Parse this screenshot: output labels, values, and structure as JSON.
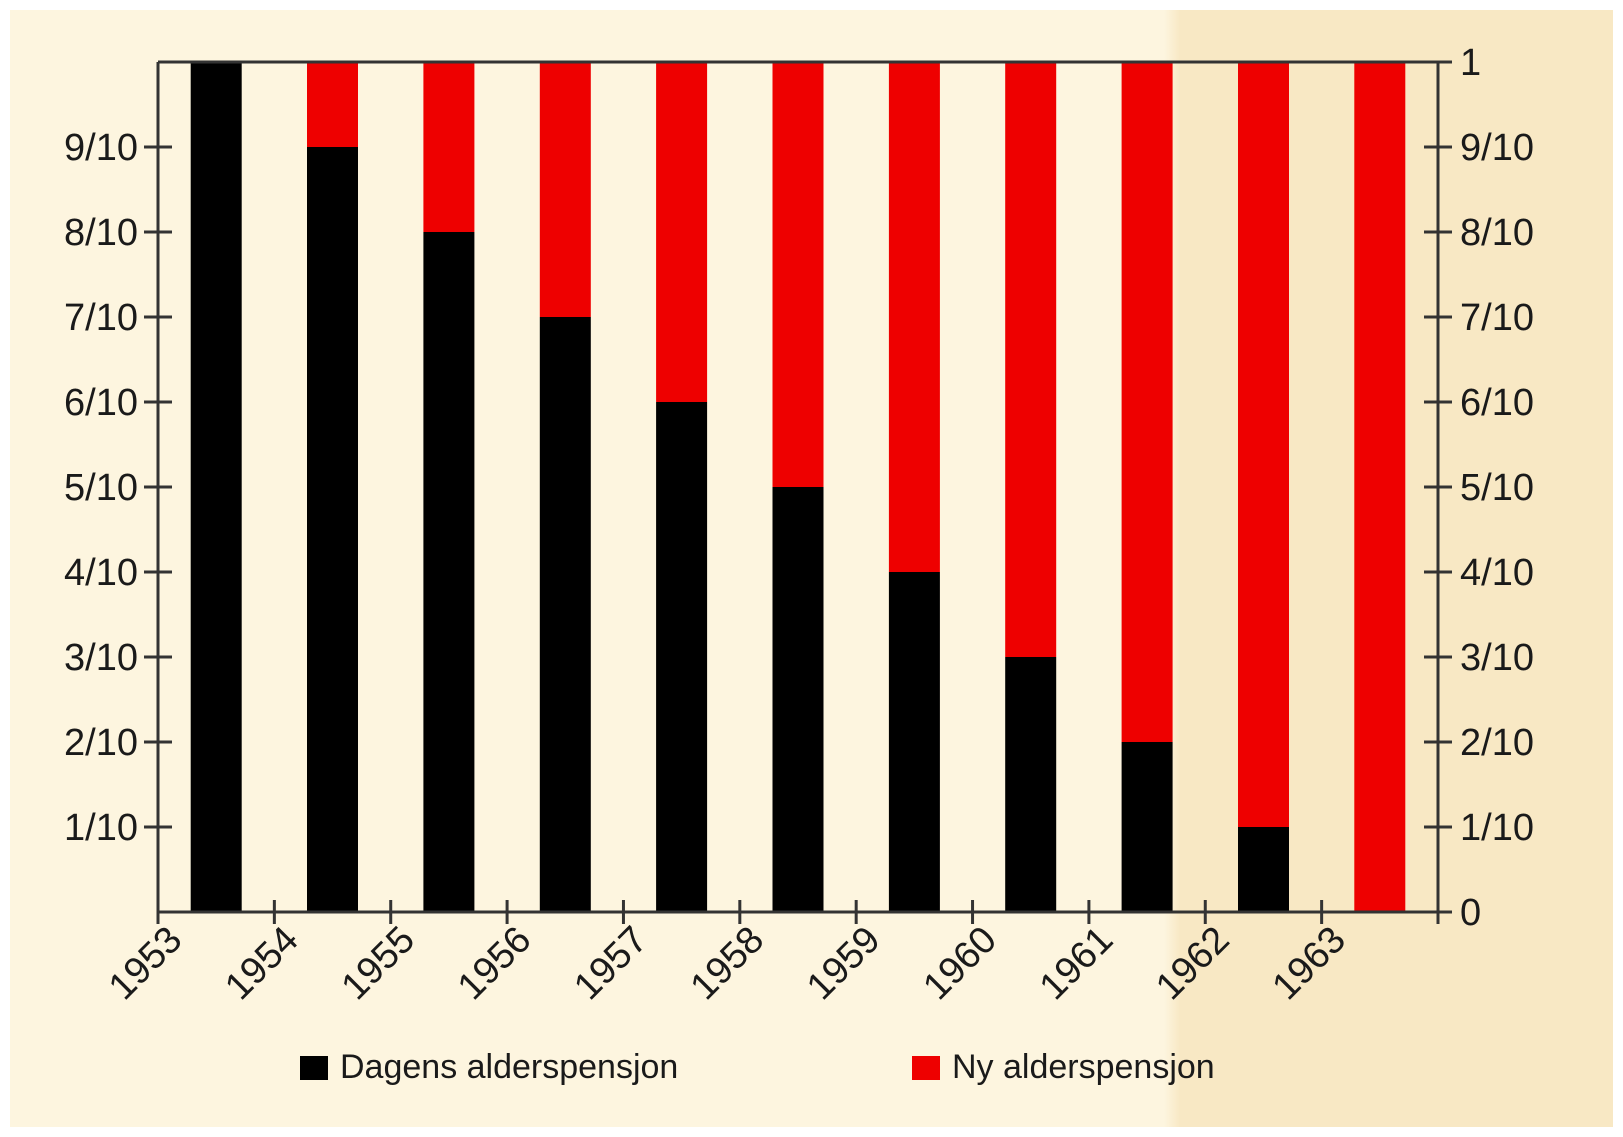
{
  "chart_data": {
    "type": "bar",
    "stacked": true,
    "categories": [
      "1953",
      "1954",
      "1955",
      "1956",
      "1957",
      "1958",
      "1959",
      "1960",
      "1961",
      "1962",
      "1963"
    ],
    "series": [
      {
        "name": "Dagens alderspensjon",
        "color": "#000000",
        "values": [
          1.0,
          0.9,
          0.8,
          0.7,
          0.6,
          0.5,
          0.4,
          0.3,
          0.2,
          0.1,
          0.0
        ]
      },
      {
        "name": "Ny alderspensjon",
        "color": "#ee0000",
        "values": [
          0.0,
          0.1,
          0.2,
          0.3,
          0.4,
          0.5,
          0.6,
          0.7,
          0.8,
          0.9,
          1.0
        ]
      }
    ],
    "ylim": [
      0,
      1
    ],
    "y_ticks_left": [
      {
        "value": 0.1,
        "label": "1/10"
      },
      {
        "value": 0.2,
        "label": "2/10"
      },
      {
        "value": 0.3,
        "label": "3/10"
      },
      {
        "value": 0.4,
        "label": "4/10"
      },
      {
        "value": 0.5,
        "label": "5/10"
      },
      {
        "value": 0.6,
        "label": "6/10"
      },
      {
        "value": 0.7,
        "label": "7/10"
      },
      {
        "value": 0.8,
        "label": "8/10"
      },
      {
        "value": 0.9,
        "label": "9/10"
      }
    ],
    "y_ticks_right": [
      {
        "value": 0,
        "label": "0"
      },
      {
        "value": 0.1,
        "label": "1/10"
      },
      {
        "value": 0.2,
        "label": "2/10"
      },
      {
        "value": 0.3,
        "label": "3/10"
      },
      {
        "value": 0.4,
        "label": "4/10"
      },
      {
        "value": 0.5,
        "label": "5/10"
      },
      {
        "value": 0.6,
        "label": "6/10"
      },
      {
        "value": 0.7,
        "label": "7/10"
      },
      {
        "value": 0.8,
        "label": "8/10"
      },
      {
        "value": 0.9,
        "label": "9/10"
      },
      {
        "value": 1,
        "label": "1"
      }
    ],
    "legend_position": "bottom",
    "grid": false,
    "background_color": "#fdf5df",
    "background_right_color": "#f8e8c4"
  }
}
